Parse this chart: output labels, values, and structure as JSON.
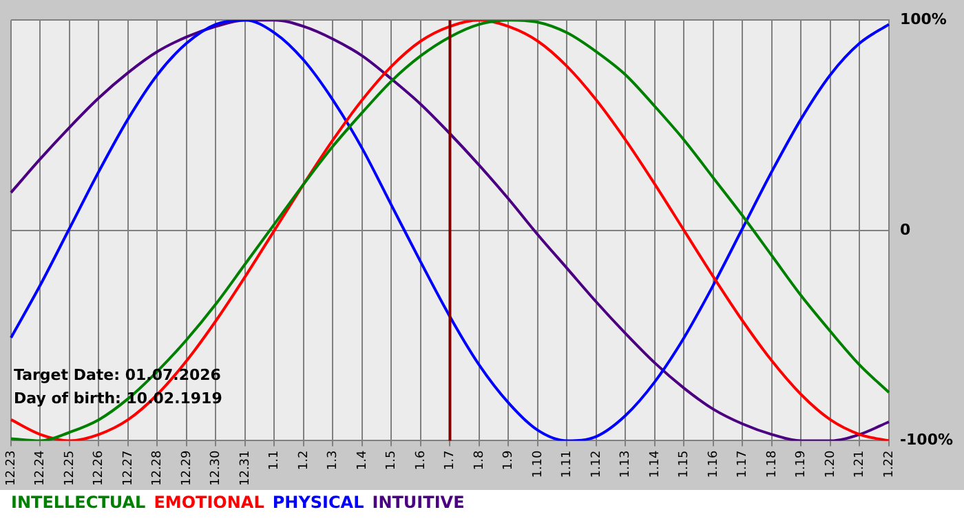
{
  "chart_data": {
    "type": "line",
    "categories": [
      "12.23",
      "12.24",
      "12.25",
      "12.26",
      "12.27",
      "12.28",
      "12.29",
      "12.30",
      "12.31",
      "1.1",
      "1.2",
      "1.3",
      "1.4",
      "1.5",
      "1.6",
      "1.7",
      "1.8",
      "1.9",
      "1.10",
      "1.11",
      "1.12",
      "1.13",
      "1.14",
      "1.15",
      "1.16",
      "1.17",
      "1.18",
      "1.19",
      "1.20",
      "1.21",
      "1.22"
    ],
    "series": [
      {
        "name": "INTELLECTUAL",
        "color": "#008000",
        "values": [
          -99,
          -100,
          -96,
          -90,
          -80,
          -67,
          -52,
          -35,
          -16,
          3,
          22,
          40,
          56,
          71,
          83,
          92,
          98,
          100,
          99,
          94,
          85,
          74,
          59,
          43,
          25,
          7,
          -12,
          -31,
          -48,
          -64,
          -77
        ]
      },
      {
        "name": "EMOTIONAL",
        "color": "#ff0000",
        "values": [
          -90,
          -97,
          -100,
          -97,
          -90,
          -78,
          -62,
          -43,
          -22,
          0,
          22,
          43,
          62,
          78,
          90,
          97,
          100,
          97,
          90,
          78,
          62,
          43,
          22,
          0,
          -22,
          -43,
          -62,
          -78,
          -90,
          -97,
          -100
        ]
      },
      {
        "name": "PHYSICAL",
        "color": "#0000ff",
        "values": [
          -51,
          -26,
          1,
          28,
          53,
          74,
          89,
          98,
          100,
          94,
          81,
          62,
          39,
          12,
          -15,
          -41,
          -64,
          -82,
          -95,
          -100,
          -98,
          -88,
          -72,
          -51,
          -26,
          1,
          28,
          53,
          74,
          89,
          98
        ]
      },
      {
        "name": "INTUITIVE",
        "color": "#4b0082",
        "values": [
          18,
          34,
          49,
          63,
          75,
          85,
          92,
          97,
          100,
          100,
          97,
          91,
          83,
          72,
          60,
          46,
          31,
          15,
          -2,
          -18,
          -34,
          -49,
          -63,
          -75,
          -85,
          -92,
          -97,
          -100,
          -100,
          -97,
          -91
        ]
      }
    ],
    "ylim": [
      -100,
      100
    ],
    "yticks": [
      {
        "value": -100,
        "label": "-100%"
      },
      0,
      {
        "value": 100,
        "label": "100%"
      }
    ],
    "grid": true,
    "legend": "bottom left",
    "marker": "none",
    "line_style": "solid",
    "ref_lines": [
      {
        "axis": "x",
        "value": "1.7",
        "color": "#800000"
      }
    ],
    "annotations": [
      "Target Date: 01.07.2026",
      "Day of birth: 10.02.1919"
    ]
  }
}
